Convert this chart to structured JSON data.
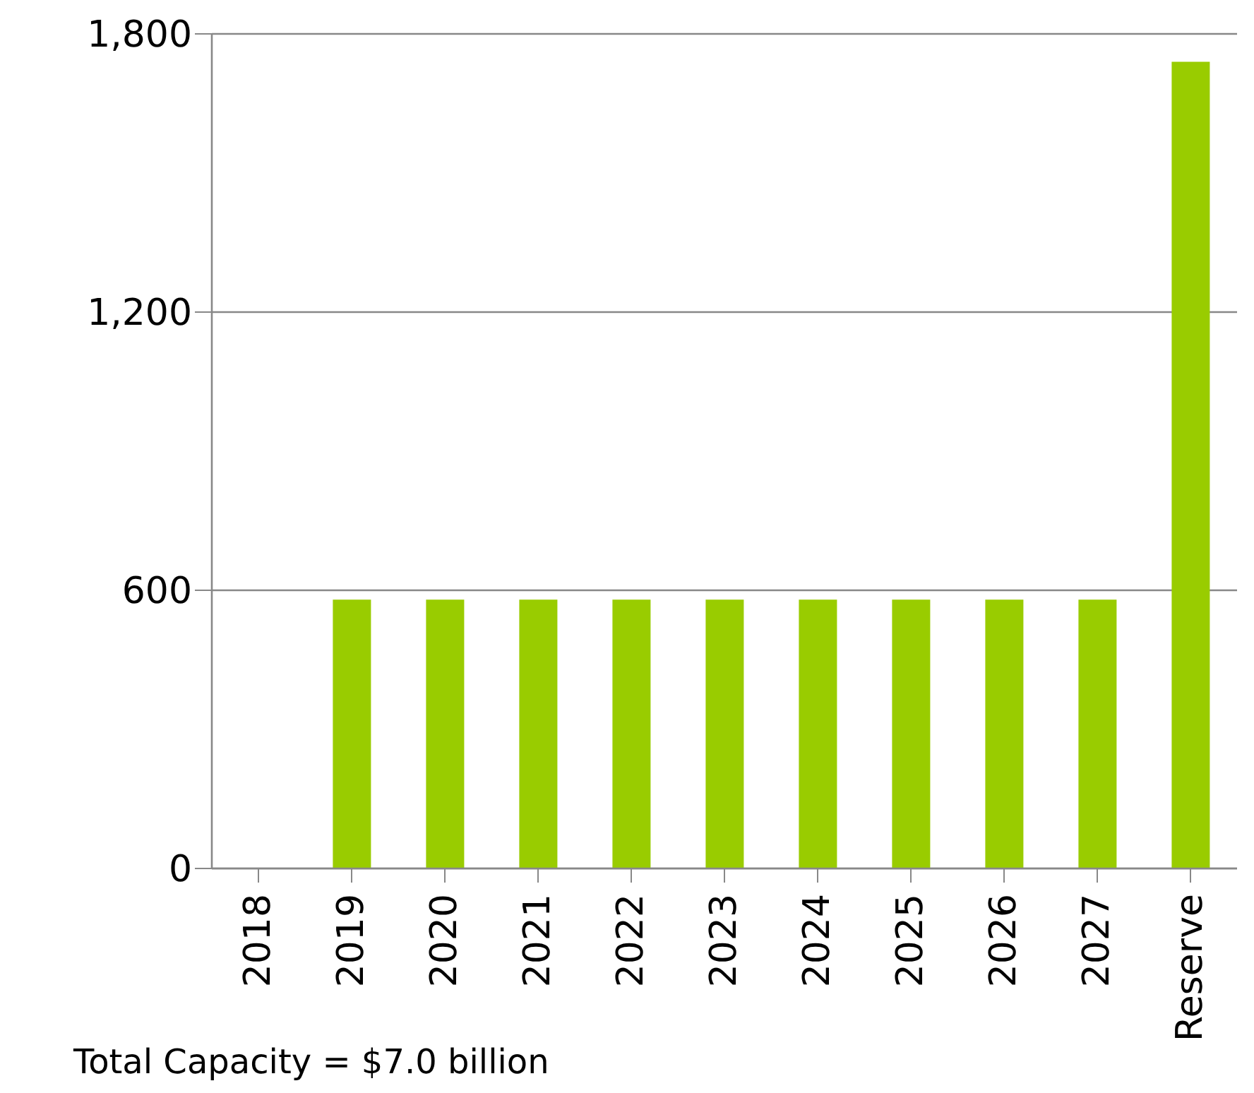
{
  "chart_data": {
    "type": "bar",
    "categories": [
      "2018",
      "2019",
      "2020",
      "2021",
      "2022",
      "2023",
      "2024",
      "2025",
      "2026",
      "2027",
      "Reserve"
    ],
    "values": [
      0,
      580,
      580,
      580,
      580,
      580,
      580,
      580,
      580,
      580,
      1740
    ],
    "color": "#99cc00",
    "ylim": [
      0,
      1800
    ],
    "yticks": [
      {
        "value": 0,
        "label": "0"
      },
      {
        "value": 600,
        "label": "600"
      },
      {
        "value": 1200,
        "label": "1,200"
      },
      {
        "value": 1800,
        "label": "1,800"
      }
    ],
    "grid": "y",
    "annotations": [
      "Total Capacity = $7.0 billion"
    ]
  }
}
